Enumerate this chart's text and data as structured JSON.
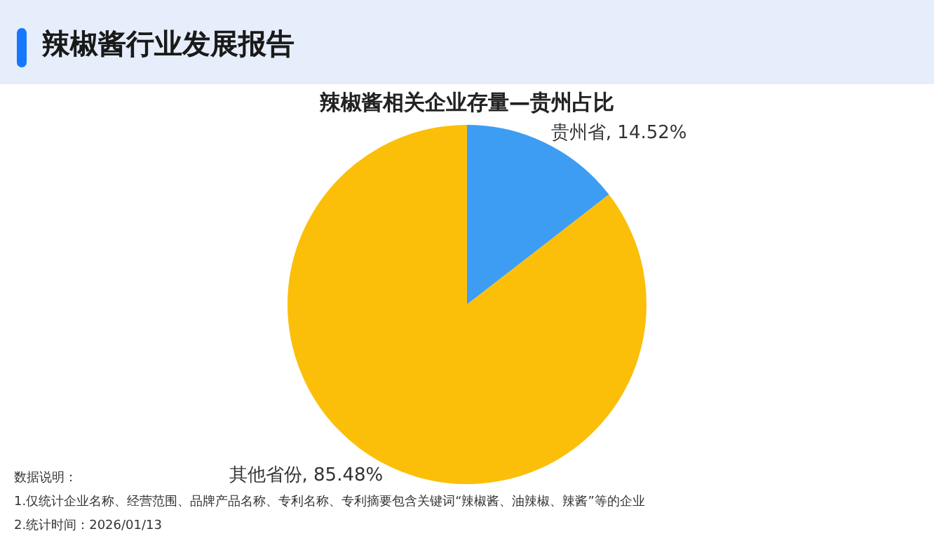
{
  "chart_data": {
    "type": "pie",
    "title": "辣椒酱行业发展报告",
    "subtitle": "辣椒酱相关企业存量—贵州占比",
    "categories": [
      "贵州省",
      "其他省份"
    ],
    "values": [
      14.52,
      85.48
    ],
    "colors": [
      "#3d9df3",
      "#fbbf0a"
    ],
    "value_labels": [
      ", 14.52%",
      ", 85.48%"
    ],
    "legend": false,
    "annotations": [
      "数据说明：",
      "1.仅统计企业名称、经营范围、品牌产品名称、专利名称、专利摘要包含关键词“辣椒酱、油辣椒、辣酱”等的企业",
      "2.统计时间：2026/01/13"
    ]
  }
}
